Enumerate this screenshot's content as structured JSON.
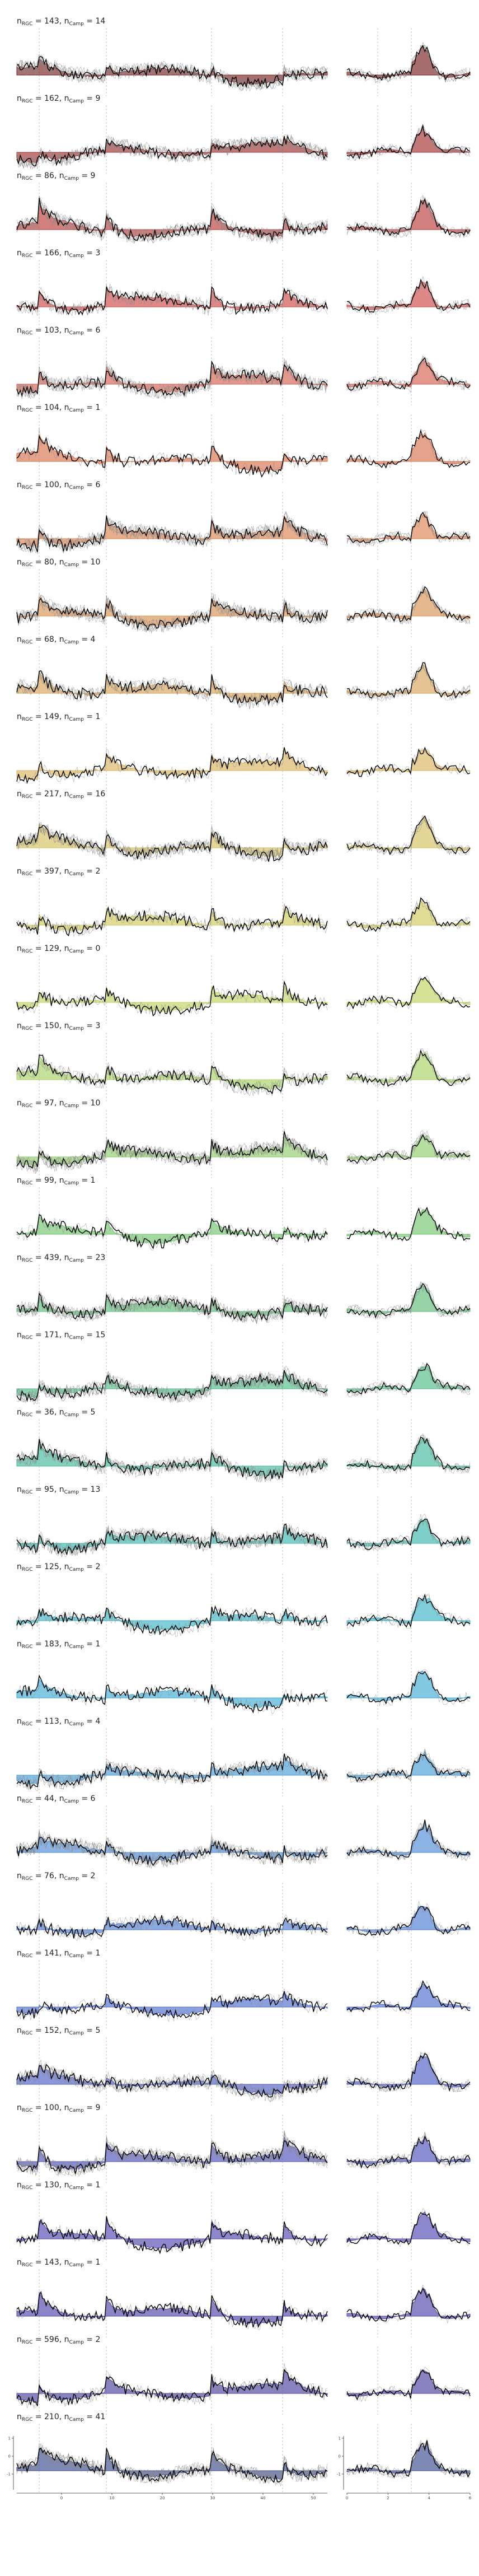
{
  "chart_data": {
    "type": "line",
    "layout": "small-multiples",
    "grid": false,
    "panels": [
      {
        "n_rgc": "143",
        "n_camp": "14",
        "color": "#7a1f1f"
      },
      {
        "n_rgc": "162",
        "n_camp": "9",
        "color": "#a3302f"
      },
      {
        "n_rgc": "86",
        "n_camp": "9",
        "color": "#b83b3b"
      },
      {
        "n_rgc": "166",
        "n_camp": "3",
        "color": "#cc4a48"
      },
      {
        "n_rgc": "103",
        "n_camp": "6",
        "color": "#d5604f"
      },
      {
        "n_rgc": "104",
        "n_camp": "1",
        "color": "#d8714f"
      },
      {
        "n_rgc": "100",
        "n_camp": "6",
        "color": "#db8250"
      },
      {
        "n_rgc": "80",
        "n_camp": "10",
        "color": "#d99253"
      },
      {
        "n_rgc": "68",
        "n_camp": "4",
        "color": "#d7a358"
      },
      {
        "n_rgc": "149",
        "n_camp": "1",
        "color": "#d8b35d"
      },
      {
        "n_rgc": "217",
        "n_camp": "16",
        "color": "#d6c05f"
      },
      {
        "n_rgc": "397",
        "n_camp": "2",
        "color": "#cfc95d"
      },
      {
        "n_rgc": "129",
        "n_camp": "0",
        "color": "#bed35f"
      },
      {
        "n_rgc": "150",
        "n_camp": "3",
        "color": "#a8d164"
      },
      {
        "n_rgc": "97",
        "n_camp": "10",
        "color": "#8fcd6a"
      },
      {
        "n_rgc": "99",
        "n_camp": "1",
        "color": "#72c46f"
      },
      {
        "n_rgc": "439",
        "n_camp": "23",
        "color": "#5dbd78"
      },
      {
        "n_rgc": "171",
        "n_camp": "15",
        "color": "#4fbb88"
      },
      {
        "n_rgc": "36",
        "n_camp": "5",
        "color": "#44b99c"
      },
      {
        "n_rgc": "95",
        "n_camp": "13",
        "color": "#3bb7ae"
      },
      {
        "n_rgc": "125",
        "n_camp": "2",
        "color": "#3cb3c4"
      },
      {
        "n_rgc": "183",
        "n_camp": "1",
        "color": "#3fabd3"
      },
      {
        "n_rgc": "113",
        "n_camp": "4",
        "color": "#479cd6"
      },
      {
        "n_rgc": "44",
        "n_camp": "6",
        "color": "#4d8ad4"
      },
      {
        "n_rgc": "76",
        "n_camp": "2",
        "color": "#4f7cd2"
      },
      {
        "n_rgc": "141",
        "n_camp": "1",
        "color": "#4f6ccd"
      },
      {
        "n_rgc": "152",
        "n_camp": "5",
        "color": "#4f5dc7"
      },
      {
        "n_rgc": "100",
        "n_camp": "9",
        "color": "#4f52bd"
      },
      {
        "n_rgc": "130",
        "n_camp": "1",
        "color": "#5048b3"
      },
      {
        "n_rgc": "143",
        "n_camp": "1",
        "color": "#4e44aa"
      },
      {
        "n_rgc": "596",
        "n_camp": "2",
        "color": "#4a42a0"
      },
      {
        "n_rgc": "210",
        "n_camp": "41",
        "color": "#3a4a8e"
      }
    ],
    "left_x_ticks": [
      "0",
      "10",
      "20",
      "30",
      "40",
      "50"
    ],
    "right_x_ticks": [
      "0",
      "2",
      "4",
      "6"
    ],
    "y_ticks": [
      "1",
      "0",
      "-1"
    ]
  }
}
